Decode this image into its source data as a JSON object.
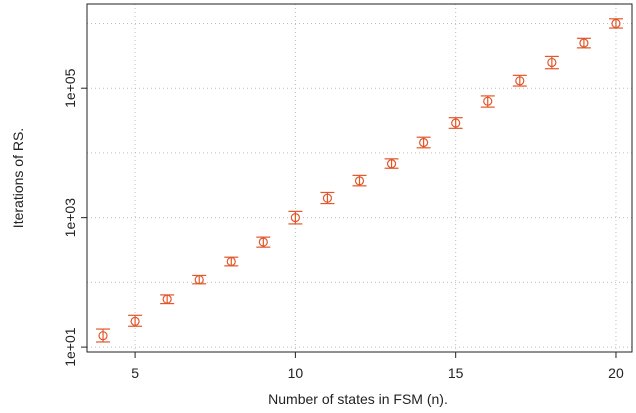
{
  "chart_data": {
    "type": "scatter",
    "title": "",
    "xlabel": "Number of states in FSM (n).",
    "ylabel": "Iterations of RS.",
    "x_scale": "linear",
    "y_scale": "log",
    "xlim": [
      3.5,
      20.5
    ],
    "ylim": [
      8.4,
      2000000
    ],
    "x_ticks": [
      5,
      10,
      15,
      20
    ],
    "x_tick_labels": [
      "5",
      "10",
      "15",
      "20"
    ],
    "y_ticks": [
      10,
      1000,
      100000
    ],
    "y_tick_labels": [
      "1e+01",
      "1e+03",
      "1e+05"
    ],
    "y_gridlines": [
      10,
      100,
      1000,
      10000,
      100000,
      1000000
    ],
    "grid": "dotted",
    "marker": "open-circle",
    "error_bars": true,
    "series": [
      {
        "color": "#e2562a",
        "points": [
          {
            "x": 4,
            "y": 15,
            "low": 12,
            "high": 19
          },
          {
            "x": 5,
            "y": 25,
            "low": 21,
            "high": 31
          },
          {
            "x": 6,
            "y": 55,
            "low": 47,
            "high": 64
          },
          {
            "x": 7,
            "y": 110,
            "low": 95,
            "high": 128
          },
          {
            "x": 8,
            "y": 210,
            "low": 180,
            "high": 245
          },
          {
            "x": 9,
            "y": 420,
            "low": 350,
            "high": 500
          },
          {
            "x": 10,
            "y": 1000,
            "low": 800,
            "high": 1250
          },
          {
            "x": 11,
            "y": 2000,
            "low": 1650,
            "high": 2450
          },
          {
            "x": 12,
            "y": 3700,
            "low": 3100,
            "high": 4500
          },
          {
            "x": 13,
            "y": 6800,
            "low": 5800,
            "high": 8100
          },
          {
            "x": 14,
            "y": 14500,
            "low": 12000,
            "high": 17500
          },
          {
            "x": 15,
            "y": 29000,
            "low": 24000,
            "high": 35000
          },
          {
            "x": 16,
            "y": 63000,
            "low": 51000,
            "high": 76000
          },
          {
            "x": 17,
            "y": 130000,
            "low": 108000,
            "high": 158000
          },
          {
            "x": 18,
            "y": 250000,
            "low": 200000,
            "high": 310000
          },
          {
            "x": 19,
            "y": 500000,
            "low": 420000,
            "high": 590000
          },
          {
            "x": 20,
            "y": 1000000,
            "low": 850000,
            "high": 1180000
          }
        ]
      }
    ]
  }
}
